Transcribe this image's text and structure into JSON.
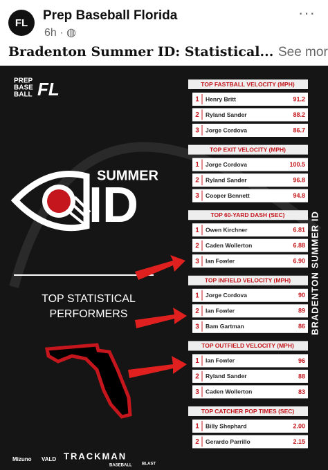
{
  "header": {
    "page_name": "Prep Baseball Florida",
    "time": "6h",
    "post_text": "Bradenton Summer ID: Statistical...",
    "see_more": "See more"
  },
  "graphic": {
    "logo_lines": [
      "PREP",
      "BASE",
      "BALL"
    ],
    "logo_mark": "FL",
    "summer": "SUMMER",
    "id": "ID",
    "subtitle_lines": [
      "TOP STATISTICAL",
      "PERFORMERS"
    ],
    "side_text": "BRADENTON SUMMER ID",
    "sponsors": [
      "Mizuno",
      "VALD",
      "TRACKMAN",
      "BASEBALL",
      "BLAST"
    ],
    "sections": [
      {
        "title": "TOP FASTBALL VELOCITY (MPH)",
        "rows": [
          {
            "rank": 1,
            "name": "Henry Britt",
            "value": "91.2"
          },
          {
            "rank": 2,
            "name": "Ryland Sander",
            "value": "88.2"
          },
          {
            "rank": 3,
            "name": "Jorge Cordova",
            "value": "86.7"
          }
        ]
      },
      {
        "title": "TOP EXIT VELOCITY (MPH)",
        "rows": [
          {
            "rank": 1,
            "name": "Jorge Cordova",
            "value": "100.5"
          },
          {
            "rank": 2,
            "name": "Ryland Sander",
            "value": "96.8"
          },
          {
            "rank": 3,
            "name": "Cooper Bennett",
            "value": "94.8"
          }
        ]
      },
      {
        "title": "TOP 60-YARD DASH (SEC)",
        "rows": [
          {
            "rank": 1,
            "name": "Owen Kirchner",
            "value": "6.81"
          },
          {
            "rank": 2,
            "name": "Caden Wollerton",
            "value": "6.88"
          },
          {
            "rank": 3,
            "name": "Ian Fowler",
            "value": "6.90"
          }
        ]
      },
      {
        "title": "TOP INFIELD VELOCITY (MPH)",
        "rows": [
          {
            "rank": 1,
            "name": "Jorge Cordova",
            "value": "90"
          },
          {
            "rank": 2,
            "name": "Ian Fowler",
            "value": "89"
          },
          {
            "rank": 3,
            "name": "Bam Gartman",
            "value": "86"
          }
        ]
      },
      {
        "title": "TOP OUTFIELD VELOCITY (MPH)",
        "rows": [
          {
            "rank": 1,
            "name": "Ian Fowler",
            "value": "96"
          },
          {
            "rank": 2,
            "name": "Ryland Sander",
            "value": "88"
          },
          {
            "rank": 3,
            "name": "Caden Wollerton",
            "value": "83"
          }
        ]
      },
      {
        "title": "TOP CATCHER POP TIMES (SEC)",
        "rows": [
          {
            "rank": 1,
            "name": "Billy Shephard",
            "value": "2.00"
          },
          {
            "rank": 2,
            "name": "Gerardo Parrillo",
            "value": "2.15"
          }
        ]
      }
    ]
  }
}
